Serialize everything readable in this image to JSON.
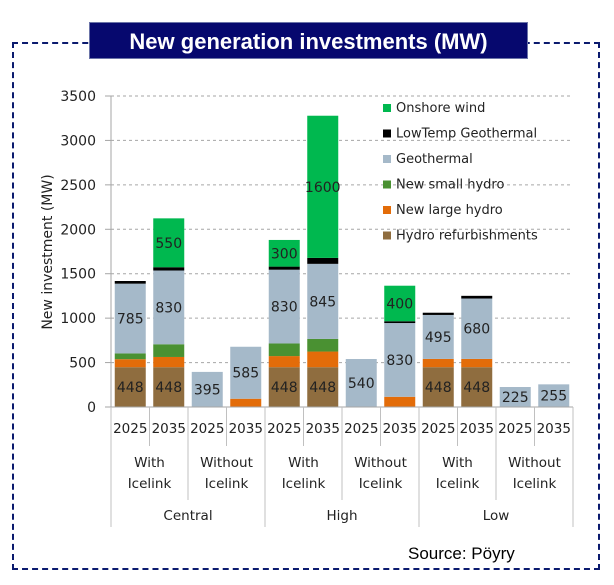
{
  "header": {
    "title": "New generation investments (MW)"
  },
  "footer": {
    "source": "Source: Pöyry"
  },
  "chart_data": {
    "type": "bar",
    "stacked": true,
    "title": "New generation investments (MW)",
    "xlabel": "",
    "ylabel": "New investment (MW)",
    "ylim": [
      0,
      3500
    ],
    "yticks": [
      0,
      500,
      1000,
      1500,
      2000,
      2500,
      3000,
      3500
    ],
    "grid": true,
    "legend_position": "top-right",
    "categories": [
      "2025",
      "2035",
      "2025",
      "2035",
      "2025",
      "2035",
      "2025",
      "2035",
      "2025",
      "2035",
      "2025",
      "2035"
    ],
    "category_groups": [
      {
        "label": [
          "With",
          "Icelink"
        ],
        "span": 2
      },
      {
        "label": [
          "Without",
          "Icelink"
        ],
        "span": 2
      },
      {
        "label": [
          "With",
          "Icelink"
        ],
        "span": 2
      },
      {
        "label": [
          "Without",
          "Icelink"
        ],
        "span": 2
      },
      {
        "label": [
          "With",
          "Icelink"
        ],
        "span": 2
      },
      {
        "label": [
          "Without",
          "Icelink"
        ],
        "span": 2
      }
    ],
    "scenario_groups": [
      {
        "label": "Central",
        "span": 4
      },
      {
        "label": "High",
        "span": 4
      },
      {
        "label": "Low",
        "span": 4
      }
    ],
    "series": [
      {
        "name": "Hydro refurbishments",
        "color": "#8f6d3f",
        "values": [
          448,
          448,
          0,
          0,
          448,
          448,
          0,
          0,
          448,
          448,
          0,
          0
        ],
        "labels": [
          "448",
          "448",
          "",
          "",
          "448",
          "448",
          "",
          "",
          "448",
          "448",
          "",
          ""
        ]
      },
      {
        "name": "New large hydro",
        "color": "#e36c09",
        "values": [
          90,
          115,
          0,
          93,
          125,
          176,
          0,
          115,
          93,
          93,
          0,
          0
        ],
        "labels": [
          "",
          "",
          "",
          "",
          "",
          "",
          "",
          "",
          "",
          "",
          "",
          ""
        ]
      },
      {
        "name": "New small hydro",
        "color": "#4a9132",
        "values": [
          65,
          143,
          0,
          0,
          142,
          142,
          0,
          0,
          0,
          0,
          0,
          0
        ],
        "labels": [
          "",
          "",
          "",
          "",
          "",
          "",
          "",
          "",
          "",
          "",
          "",
          ""
        ]
      },
      {
        "name": "Geothermal",
        "color": "#a5b9c9",
        "values": [
          785,
          830,
          395,
          585,
          830,
          845,
          540,
          830,
          495,
          680,
          225,
          255
        ],
        "labels": [
          "785",
          "830",
          "395",
          "585",
          "830",
          "845",
          "540",
          "830",
          "495",
          "680",
          "225",
          "255"
        ]
      },
      {
        "name": "LowTemp Geothermal",
        "color": "#000000",
        "values": [
          30,
          37,
          0,
          0,
          35,
          67,
          0,
          20,
          25,
          30,
          0,
          0
        ],
        "labels": [
          "",
          "",
          "",
          "",
          "",
          "",
          "",
          "",
          "",
          "",
          "",
          ""
        ]
      },
      {
        "name": "Onshore wind",
        "color": "#00b84f",
        "values": [
          0,
          550,
          0,
          0,
          300,
          1600,
          0,
          400,
          0,
          0,
          0,
          0
        ],
        "labels": [
          "",
          "550",
          "",
          "",
          "300",
          "1600",
          "",
          "400",
          "",
          "",
          "",
          ""
        ]
      }
    ],
    "legend_order": [
      "Onshore wind",
      "LowTemp Geothermal",
      "Geothermal",
      "New small hydro",
      "New large hydro",
      "Hydro refurbishments"
    ]
  }
}
